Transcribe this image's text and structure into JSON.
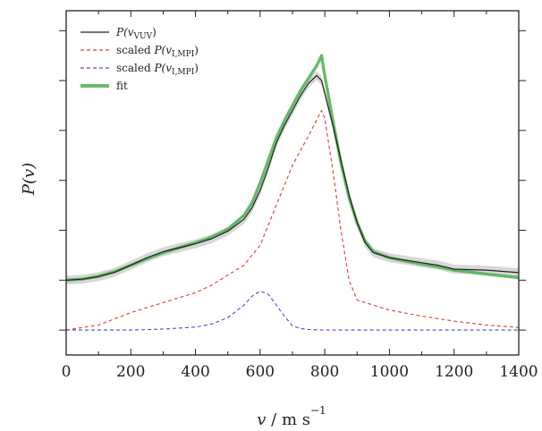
{
  "chart_data": {
    "type": "line",
    "title": "",
    "xlabel": {
      "symbol": "v",
      "unit": "/ m s",
      "exponent": "−1"
    },
    "ylabel": {
      "symbol": "P",
      "arg": "(v)"
    },
    "xlim": [
      0,
      1400
    ],
    "ylim": [
      -0.5,
      6.4
    ],
    "x_ticks": [
      0,
      200,
      400,
      600,
      800,
      1000,
      1200,
      1400
    ],
    "y_ticks_unlabeled": [
      0,
      1,
      2,
      3,
      4,
      5,
      6
    ],
    "grid": false,
    "legend_position": "top-left",
    "legend": [
      {
        "id": "vuv",
        "prefix": "",
        "main": "P(v",
        "sub": "VUV",
        "suffix": ")",
        "color": "#222222",
        "style": "solid"
      },
      {
        "id": "lmpi_red",
        "prefix": "scaled ",
        "main": "P(v",
        "sub": "I,MPI",
        "suffix": ")",
        "color": "#e23a3a",
        "style": "dashed"
      },
      {
        "id": "lmpi_blue",
        "prefix": "scaled ",
        "main": "P(v",
        "sub": "I,MPI",
        "suffix": ")",
        "color": "#4a4ad8",
        "style": "dashed"
      },
      {
        "id": "fit",
        "prefix": "",
        "main": "fit",
        "sub": "",
        "suffix": "",
        "color": "#4caf50",
        "style": "thick"
      }
    ],
    "series": [
      {
        "id": "vuv",
        "color": "#222222",
        "x": [
          0,
          50,
          100,
          150,
          200,
          250,
          300,
          350,
          400,
          450,
          500,
          550,
          575,
          600,
          625,
          650,
          675,
          700,
          725,
          750,
          775,
          790,
          800,
          825,
          850,
          875,
          900,
          925,
          950,
          1000,
          1050,
          1100,
          1150,
          1200,
          1300,
          1400
        ],
        "y": [
          1.0,
          1.02,
          1.07,
          1.16,
          1.3,
          1.45,
          1.57,
          1.65,
          1.73,
          1.83,
          1.98,
          2.22,
          2.45,
          2.8,
          3.25,
          3.75,
          4.1,
          4.4,
          4.7,
          4.95,
          5.1,
          5.0,
          4.75,
          4.1,
          3.4,
          2.7,
          2.15,
          1.75,
          1.55,
          1.45,
          1.4,
          1.35,
          1.3,
          1.22,
          1.2,
          1.15
        ]
      },
      {
        "id": "lmpi_red",
        "color": "#e23a3a",
        "x": [
          0,
          100,
          200,
          300,
          400,
          450,
          500,
          550,
          600,
          650,
          700,
          750,
          790,
          800,
          825,
          850,
          875,
          900,
          950,
          1000,
          1100,
          1200,
          1300,
          1400
        ],
        "y": [
          0.0,
          0.1,
          0.35,
          0.55,
          0.75,
          0.9,
          1.1,
          1.3,
          1.7,
          2.5,
          3.3,
          3.9,
          4.4,
          4.25,
          3.2,
          2.0,
          1.0,
          0.6,
          0.5,
          0.4,
          0.28,
          0.18,
          0.1,
          0.05
        ]
      },
      {
        "id": "lmpi_blue",
        "color": "#4a4ad8",
        "x": [
          0,
          100,
          200,
          300,
          400,
          450,
          500,
          550,
          575,
          600,
          625,
          650,
          675,
          700,
          725,
          750,
          800,
          900,
          1000,
          1200,
          1400
        ],
        "y": [
          0.0,
          0.0,
          0.0,
          0.02,
          0.06,
          0.12,
          0.25,
          0.5,
          0.68,
          0.78,
          0.72,
          0.5,
          0.28,
          0.08,
          0.03,
          0.01,
          0.0,
          0.0,
          0.0,
          0.0,
          0.0
        ]
      },
      {
        "id": "fit",
        "color": "#4caf50",
        "x": [
          0,
          50,
          100,
          150,
          200,
          250,
          300,
          350,
          400,
          450,
          500,
          550,
          575,
          600,
          625,
          650,
          675,
          700,
          725,
          750,
          775,
          790,
          800,
          825,
          850,
          875,
          900,
          925,
          950,
          1000,
          1050,
          1100,
          1150,
          1200,
          1300,
          1400
        ],
        "y": [
          1.0,
          1.02,
          1.08,
          1.17,
          1.3,
          1.43,
          1.55,
          1.65,
          1.75,
          1.86,
          2.02,
          2.3,
          2.55,
          2.95,
          3.4,
          3.85,
          4.2,
          4.5,
          4.8,
          5.05,
          5.3,
          5.5,
          5.1,
          4.2,
          3.35,
          2.65,
          2.15,
          1.78,
          1.57,
          1.45,
          1.38,
          1.32,
          1.27,
          1.2,
          1.12,
          1.05
        ]
      }
    ]
  }
}
